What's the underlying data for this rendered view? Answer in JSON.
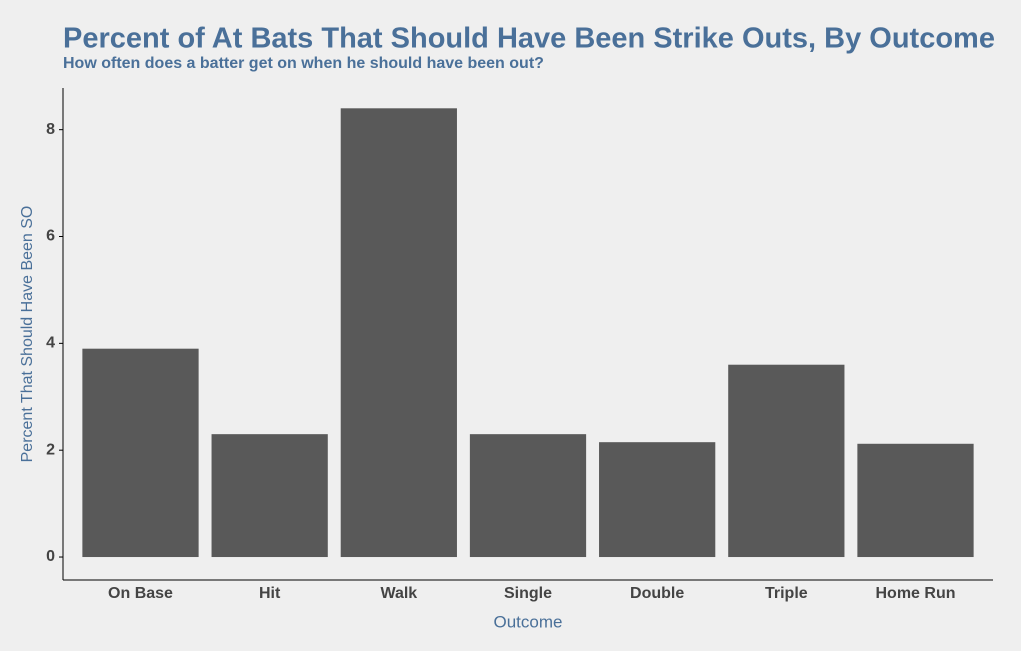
{
  "chart_data": {
    "type": "bar",
    "title": "Percent of At Bats That Should Have Been Strike Outs, By Outcome",
    "subtitle": "How often does a batter get on when he should have been out?",
    "x_label": "Outcome",
    "y_label": "Percent That Should Have Been SO",
    "categories": [
      "On Base",
      "Hit",
      "Walk",
      "Single",
      "Double",
      "Triple",
      "Home Run"
    ],
    "values": [
      3.9,
      2.3,
      8.4,
      2.3,
      2.15,
      3.6,
      2.12
    ],
    "color": "#595959",
    "ylim": [
      -0.43,
      8.78
    ],
    "yticks": [
      0,
      2,
      4,
      6,
      8
    ],
    "grid": false
  }
}
